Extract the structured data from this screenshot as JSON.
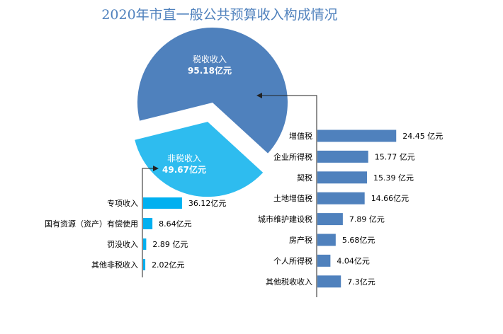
{
  "chart_data": [
    {
      "type": "pie",
      "title": "2020年市直一般公共预算收入构成情况",
      "slices": [
        {
          "label": "税收收入",
          "value": 95.18,
          "value_label": "95.18亿元",
          "color": "#4F81BD"
        },
        {
          "label": "非税收入",
          "value": 49.67,
          "value_label": "49.67亿元",
          "color": "#2EBCEF",
          "exploded": true
        }
      ]
    },
    {
      "type": "bar",
      "orientation": "horizontal",
      "color": "#4F81BD",
      "categories": [
        "增值税",
        "企业所得税",
        "契税",
        "土地增值税",
        "城市维护建设税",
        "房产税",
        "个人所得税",
        "其他税收收入"
      ],
      "values": [
        24.45,
        15.77,
        15.39,
        14.66,
        7.89,
        5.68,
        4.04,
        7.3
      ],
      "labels": [
        "24.45 亿元",
        "15.77 亿元",
        "15.39 亿元",
        "14.66亿元",
        "7.89 亿元",
        "5.68亿元",
        "4.04亿元",
        "7.3亿元"
      ]
    },
    {
      "type": "bar",
      "orientation": "horizontal",
      "color": "#00B0F0",
      "categories": [
        "专项收入",
        "国有资源（资产）有偿使用",
        "罚没收入",
        "其他非税收入"
      ],
      "values": [
        36.12,
        8.64,
        2.89,
        2.02
      ],
      "labels": [
        "36.12亿元",
        "8.64亿元",
        "2.89 亿元",
        "2.02亿元"
      ]
    }
  ]
}
